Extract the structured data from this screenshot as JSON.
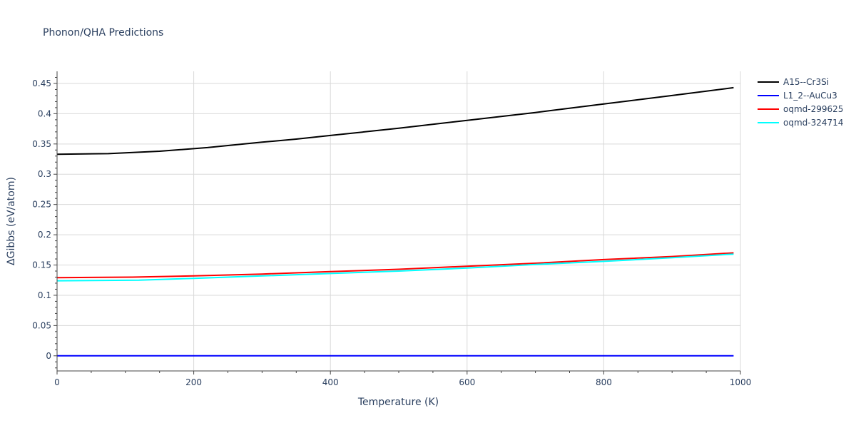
{
  "chart_data": {
    "type": "line",
    "title": "Phonon/QHA Predictions",
    "xlabel": "Temperature (K)",
    "ylabel": "ΔGibbs (eV/atom)",
    "xlim": [
      0,
      1000
    ],
    "ylim": [
      -0.025,
      0.47
    ],
    "xticks": [
      0,
      200,
      400,
      600,
      800,
      1000
    ],
    "xtick_labels": [
      "0",
      "200",
      "400",
      "600",
      "800",
      "1000"
    ],
    "yticks": [
      0,
      0.05,
      0.1,
      0.15,
      0.2,
      0.25,
      0.3,
      0.35,
      0.4,
      0.45
    ],
    "ytick_labels": [
      "0",
      "0.05",
      "0.1",
      "0.15",
      "0.2",
      "0.25",
      "0.3",
      "0.35",
      "0.4",
      "0.45"
    ],
    "grid": true,
    "legend_position": "top-right",
    "series": [
      {
        "name": "A15--Cr3Si",
        "color": "#000000",
        "x": [
          0,
          75,
          150,
          220,
          300,
          350,
          400,
          500,
          600,
          700,
          800,
          900,
          990
        ],
        "y": [
          0.333,
          0.334,
          0.338,
          0.344,
          0.353,
          0.358,
          0.364,
          0.376,
          0.389,
          0.402,
          0.416,
          0.43,
          0.443
        ]
      },
      {
        "name": "L1_2--AuCu3",
        "color": "#0000ff",
        "x": [
          0,
          200,
          400,
          600,
          800,
          990
        ],
        "y": [
          0,
          0,
          0,
          0,
          0,
          0
        ]
      },
      {
        "name": "oqmd-299625",
        "color": "#ff0000",
        "x": [
          0,
          50,
          110,
          200,
          300,
          400,
          500,
          600,
          700,
          800,
          900,
          990
        ],
        "y": [
          0.129,
          0.1295,
          0.13,
          0.132,
          0.135,
          0.139,
          0.143,
          0.148,
          0.153,
          0.159,
          0.164,
          0.17
        ]
      },
      {
        "name": "oqmd-324714",
        "color": "#00ffff",
        "x": [
          0,
          50,
          120,
          200,
          300,
          400,
          500,
          600,
          700,
          800,
          900,
          990
        ],
        "y": [
          0.124,
          0.1245,
          0.125,
          0.128,
          0.132,
          0.136,
          0.14,
          0.145,
          0.151,
          0.156,
          0.162,
          0.168
        ]
      }
    ]
  }
}
